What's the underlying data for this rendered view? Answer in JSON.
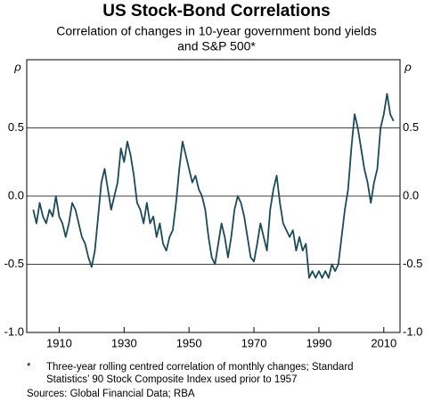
{
  "chart_data": {
    "type": "line",
    "title": "US Stock-Bond Correlations",
    "subtitle": [
      "Correlation of changes in 10-year government bond yields",
      "and S&P 500*"
    ],
    "y_label": "ρ",
    "xlim": [
      1900,
      2015
    ],
    "xticks": [
      1910,
      1930,
      1950,
      1970,
      1990,
      2010
    ],
    "ylim": [
      -1,
      1
    ],
    "yticks": [
      {
        "value": -1,
        "label": "-1.0"
      },
      -0.5,
      {
        "value": 0,
        "label": "0.0"
      },
      0.5
    ],
    "grid": true,
    "x": [
      1902,
      1903,
      1904,
      1905,
      1906,
      1907,
      1908,
      1909,
      1910,
      1911,
      1912,
      1913,
      1914,
      1915,
      1916,
      1917,
      1918,
      1919,
      1920,
      1921,
      1922,
      1923,
      1924,
      1925,
      1926,
      1927,
      1928,
      1929,
      1930,
      1931,
      1932,
      1933,
      1934,
      1935,
      1936,
      1937,
      1938,
      1939,
      1940,
      1941,
      1942,
      1943,
      1944,
      1945,
      1946,
      1947,
      1948,
      1949,
      1950,
      1951,
      1952,
      1953,
      1954,
      1955,
      1956,
      1957,
      1958,
      1959,
      1960,
      1961,
      1962,
      1963,
      1964,
      1965,
      1966,
      1967,
      1968,
      1969,
      1970,
      1971,
      1972,
      1973,
      1974,
      1975,
      1976,
      1977,
      1978,
      1979,
      1980,
      1981,
      1982,
      1983,
      1984,
      1985,
      1986,
      1987,
      1988,
      1989,
      1990,
      1991,
      1992,
      1993,
      1994,
      1995,
      1996,
      1997,
      1998,
      1999,
      2000,
      2001,
      2002,
      2003,
      2004,
      2005,
      2006,
      2007,
      2008,
      2009,
      2010,
      2011,
      2012,
      2013
    ],
    "series": [
      {
        "name": "Correlation",
        "color": "#1b4a5a",
        "values": [
          -0.1,
          -0.2,
          -0.05,
          -0.15,
          -0.2,
          -0.1,
          -0.15,
          0.0,
          -0.15,
          -0.2,
          -0.3,
          -0.2,
          -0.05,
          -0.1,
          -0.2,
          -0.3,
          -0.35,
          -0.45,
          -0.52,
          -0.4,
          -0.15,
          0.1,
          0.2,
          0.05,
          -0.1,
          0.0,
          0.1,
          0.35,
          0.25,
          0.4,
          0.3,
          0.15,
          -0.05,
          -0.1,
          -0.2,
          -0.05,
          -0.2,
          -0.15,
          -0.3,
          -0.2,
          -0.35,
          -0.4,
          -0.3,
          -0.25,
          -0.05,
          0.2,
          0.4,
          0.3,
          0.2,
          0.1,
          0.15,
          0.05,
          0.0,
          -0.1,
          -0.3,
          -0.45,
          -0.5,
          -0.35,
          -0.2,
          -0.3,
          -0.45,
          -0.3,
          -0.1,
          0.0,
          -0.05,
          -0.15,
          -0.3,
          -0.45,
          -0.48,
          -0.35,
          -0.2,
          -0.3,
          -0.4,
          -0.1,
          0.05,
          0.15,
          -0.05,
          -0.2,
          -0.25,
          -0.3,
          -0.25,
          -0.4,
          -0.3,
          -0.4,
          -0.35,
          -0.6,
          -0.55,
          -0.6,
          -0.55,
          -0.6,
          -0.55,
          -0.6,
          -0.5,
          -0.55,
          -0.5,
          -0.3,
          -0.1,
          0.05,
          0.35,
          0.6,
          0.5,
          0.35,
          0.2,
          0.1,
          -0.05,
          0.1,
          0.2,
          0.5,
          0.6,
          0.75,
          0.6,
          0.55
        ]
      }
    ],
    "notes": {
      "marker": "*",
      "lines": [
        "Three-year rolling centred correlation of monthly changes; Standard",
        "Statistics’ 90 Stock Composite Index used prior to 1957"
      ]
    },
    "source": "Sources:  Global Financial Data; RBA"
  }
}
